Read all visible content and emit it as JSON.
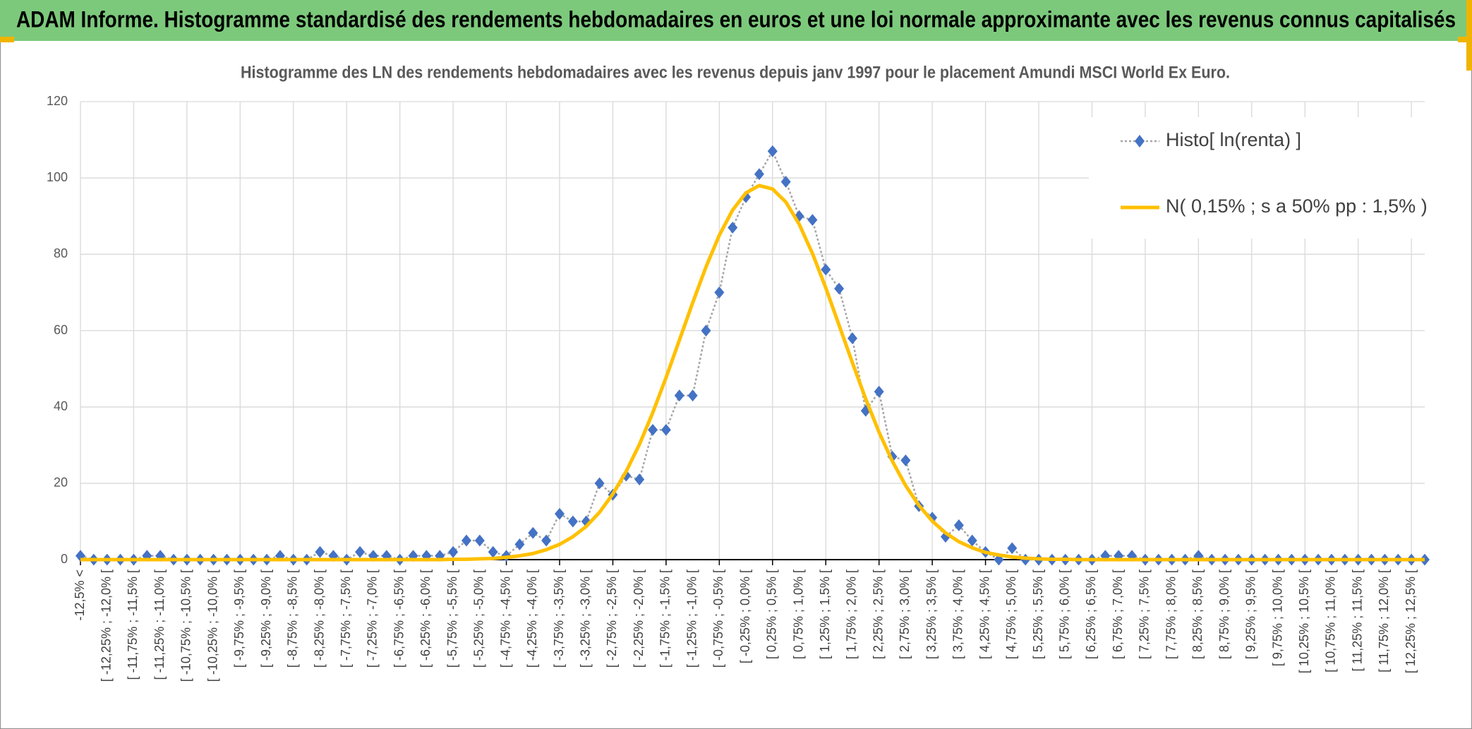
{
  "header": {
    "title": "ADAM Informe. Histogramme standardisé des rendements hebdomadaires en euros et une loi normale approximante avec les revenus connus capitalisés"
  },
  "chart_data": {
    "type": "line",
    "title": "Histogramme des LN des rendements hebdomadaires avec les revenus depuis janv 1997 pour le placement Amundi MSCI World Ex Euro.",
    "categories": [
      "-12,5% <",
      null,
      "[ -12,25% ; -12,0% [",
      null,
      "[ -11,75% ; -11,5% [",
      null,
      "[ -11,25% ; -11,0% [",
      null,
      "[ -10,75% ; -10,5% [",
      null,
      "[ -10,25% ; -10,0% [",
      null,
      "[ -9,75% ; -9,5% [",
      null,
      "[ -9,25% ; -9,0% [",
      null,
      "[ -8,75% ; -8,5% [",
      null,
      "[ -8,25% ; -8,0% [",
      null,
      "[ -7,75% ; -7,5% [",
      null,
      "[ -7,25% ; -7,0% [",
      null,
      "[ -6,75% ; -6,5% [",
      null,
      "[ -6,25% ; -6,0% [",
      null,
      "[ -5,75% ; -5,5% [",
      null,
      "[ -5,25% ; -5,0% [",
      null,
      "[ -4,75% ; -4,5% [",
      null,
      "[ -4,25% ; -4,0% [",
      null,
      "[ -3,75% ; -3,5% [",
      null,
      "[ -3,25% ; -3,0% [",
      null,
      "[ -2,75% ; -2,5% [",
      null,
      "[ -2,25% ; -2,0% [",
      null,
      "[ -1,75% ; -1,5% [",
      null,
      "[ -1,25% ; -1,0% [",
      null,
      "[ -0,75% ; -0,5% [",
      null,
      "[ -0,25% ; 0,0% [",
      null,
      "[ 0,25% ; 0,5% [",
      null,
      "[ 0,75% ; 1,0% [",
      null,
      "[ 1,25% ; 1,5% [",
      null,
      "[ 1,75% ; 2,0% [",
      null,
      "[ 2,25% ; 2,5% [",
      null,
      "[ 2,75% ; 3,0% [",
      null,
      "[ 3,25% ; 3,5% [",
      null,
      "[ 3,75% ; 4,0% [",
      null,
      "[ 4,25% ; 4,5% [",
      null,
      "[ 4,75% ; 5,0% [",
      null,
      "[ 5,25% ; 5,5% [",
      null,
      "[ 5,75% ; 6,0% [",
      null,
      "[ 6,25% ; 6,5% [",
      null,
      "[ 6,75% ; 7,0% [",
      null,
      "[ 7,25% ; 7,5% [",
      null,
      "[ 7,75% ; 8,0% [",
      null,
      "[ 8,25% ; 8,5% [",
      null,
      "[ 8,75% ; 9,0% [",
      null,
      "[ 9,25% ; 9,5% [",
      null,
      "[ 9,75% ; 10,0% [",
      null,
      "[ 10,25% ; 10,5% [",
      null,
      "[ 10,75% ; 11,0% [",
      null,
      "[ 11,25% ; 11,5% [",
      null,
      "[ 11,75% ; 12,0% [",
      null,
      "[ 12,25% ; 12,5% [",
      null
    ],
    "series": [
      {
        "name": "Histo[ ln(renta) ]",
        "color": "#4472c4",
        "line_color": "#a5a5a5",
        "values": [
          1,
          0,
          0,
          0,
          0,
          1,
          1,
          0,
          0,
          0,
          0,
          0,
          0,
          0,
          0,
          1,
          0,
          0,
          2,
          1,
          0,
          2,
          1,
          1,
          0,
          1,
          1,
          1,
          2,
          5,
          5,
          2,
          1,
          4,
          7,
          5,
          12,
          10,
          10,
          20,
          17,
          22,
          21,
          34,
          34,
          43,
          43,
          60,
          70,
          87,
          95,
          101,
          107,
          99,
          90,
          89,
          76,
          71,
          58,
          39,
          44,
          27,
          26,
          14,
          11,
          6,
          9,
          5,
          2,
          0,
          3,
          0,
          0,
          0,
          0,
          0,
          0,
          1,
          1,
          1,
          0,
          0,
          0,
          0,
          1,
          0,
          0,
          0,
          0,
          0,
          0,
          0,
          0,
          0,
          0,
          0,
          0,
          0,
          0,
          0,
          0,
          0
        ]
      },
      {
        "name": "N( 0,15% ; s a 50% pp : 1,5% )",
        "color": "#ffc000",
        "values": [
          0,
          0,
          0,
          0,
          0,
          0,
          0,
          0,
          0,
          0,
          0,
          0,
          0,
          0,
          0,
          0,
          0,
          0,
          0,
          0,
          0,
          0,
          0,
          0,
          0,
          0,
          0,
          0,
          0.1,
          0.1,
          0.2,
          0.3,
          0.6,
          1.0,
          1.6,
          2.6,
          4.0,
          6.0,
          8.7,
          12.4,
          17.2,
          23.1,
          30.2,
          38.5,
          47.7,
          57.5,
          67.3,
          76.7,
          85.0,
          91.6,
          96.1,
          98.0,
          97.1,
          93.7,
          87.9,
          80.2,
          71.2,
          61.4,
          51.6,
          42.1,
          33.4,
          25.8,
          19.4,
          14.2,
          10.1,
          7.0,
          4.7,
          3.1,
          1.9,
          1.2,
          0.7,
          0.4,
          0.2,
          0.1,
          0.1,
          0,
          0,
          0,
          0,
          0,
          0,
          0,
          0,
          0,
          0,
          0,
          0,
          0,
          0,
          0,
          0,
          0,
          0,
          0,
          0,
          0,
          0,
          0,
          0,
          0,
          0,
          0
        ]
      }
    ],
    "ylim": [
      0,
      120
    ],
    "yticks": [
      0,
      20,
      40,
      60,
      80,
      100,
      120
    ],
    "grid": true,
    "legend": "upper right"
  }
}
